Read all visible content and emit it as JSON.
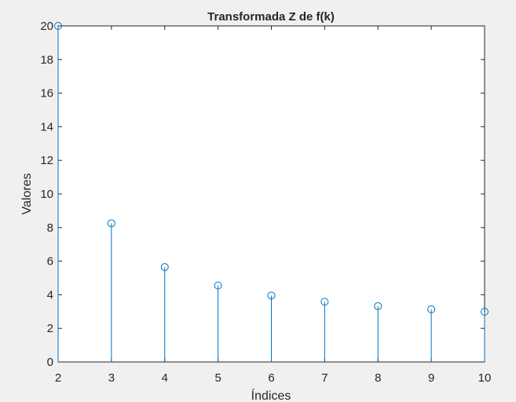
{
  "chart_data": {
    "type": "stem",
    "title": "Transformada Z de f(k)",
    "xlabel": "Índices",
    "ylabel": "Valores",
    "xlim": [
      2,
      10
    ],
    "ylim": [
      0,
      20
    ],
    "xticks": [
      "2",
      "3",
      "4",
      "5",
      "6",
      "7",
      "8",
      "9",
      "10"
    ],
    "yticks": [
      "0",
      "2",
      "4",
      "6",
      "8",
      "10",
      "12",
      "14",
      "16",
      "18",
      "20"
    ],
    "grid": false,
    "x": [
      2,
      3,
      4,
      5,
      6,
      7,
      8,
      9,
      10
    ],
    "y": [
      20.0,
      8.25,
      5.65,
      4.55,
      3.95,
      3.58,
      3.32,
      3.13,
      2.99
    ],
    "colors": {
      "series": "#0072bd",
      "axes": "#262626",
      "plot_background": "#ffffff",
      "figure_background": "#f0f0f0"
    }
  }
}
